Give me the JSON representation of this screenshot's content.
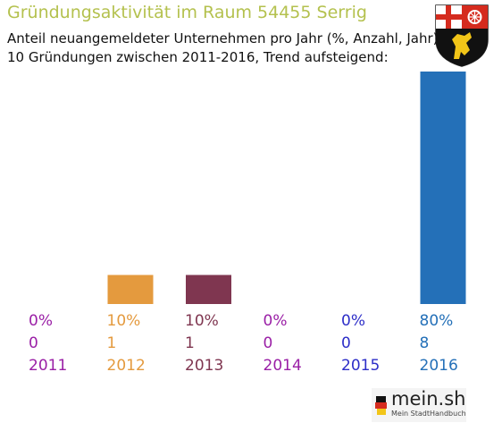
{
  "title": "Gründungsaktivität im Raum 54455 Serrig",
  "subtitle_line1": "Anteil neuangemeldeter Unternehmen pro Jahr (%, Anzahl, Jahr)",
  "subtitle_line2": "10 Gründungen zwischen 2011-2016, Trend aufsteigend:",
  "logo": {
    "main": "mein.sh",
    "sub": "Mein StadtHandbuch"
  },
  "colors": {
    "title": "#b4c14e"
  },
  "chart_data": {
    "type": "bar",
    "categories": [
      "2011",
      "2012",
      "2013",
      "2014",
      "2015",
      "2016"
    ],
    "values": [
      0,
      10,
      10,
      0,
      0,
      80
    ],
    "counts": [
      0,
      1,
      1,
      0,
      0,
      8
    ],
    "percent_labels": [
      "0%",
      "10%",
      "10%",
      "0%",
      "0%",
      "80%"
    ],
    "colors": [
      "#9a1fa6",
      "#e49a3e",
      "#7f3650",
      "#9a1fa6",
      "#2d2ec8",
      "#2470b8"
    ],
    "ylim": [
      0,
      100
    ],
    "grid": false,
    "legend": "none"
  }
}
